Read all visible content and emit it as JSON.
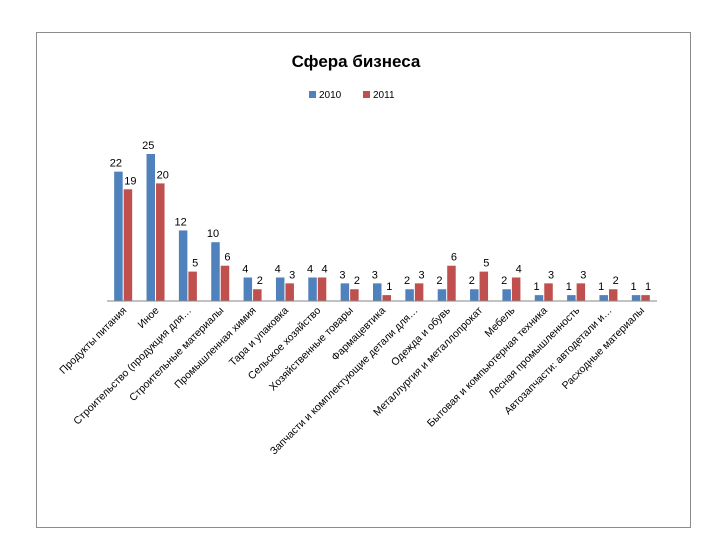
{
  "chart_data": {
    "type": "bar",
    "title": "Сфера бизнеса",
    "xlabel": "",
    "ylabel": "",
    "ylim": [
      0,
      25
    ],
    "grid": false,
    "legend": "top",
    "categories": [
      "Продукты питания",
      "Иное",
      "Строительство (продукция для…",
      "Строительные материалы",
      "Промышленная химия",
      "Тара и упаковка",
      "Сельское хозяйство",
      "Хозяйственные товары",
      "Фармацевтика",
      "Запчасти и комплектующие детали для…",
      "Одежда и обувь",
      "Металлургия и металлопрокат",
      "Мебель",
      "Бытовая и компьютерная техника",
      "Лесная промышленность",
      "Автозапчасти: автодетали и…",
      "Расходные материалы"
    ],
    "series": [
      {
        "name": "2010",
        "color": "#4f81bd",
        "values": [
          22,
          25,
          12,
          10,
          4,
          4,
          4,
          3,
          3,
          2,
          2,
          2,
          2,
          1,
          1,
          1,
          1
        ]
      },
      {
        "name": "2011",
        "color": "#c0504d",
        "values": [
          19,
          20,
          5,
          6,
          2,
          3,
          4,
          2,
          1,
          3,
          6,
          5,
          4,
          3,
          3,
          2,
          1
        ]
      }
    ]
  }
}
